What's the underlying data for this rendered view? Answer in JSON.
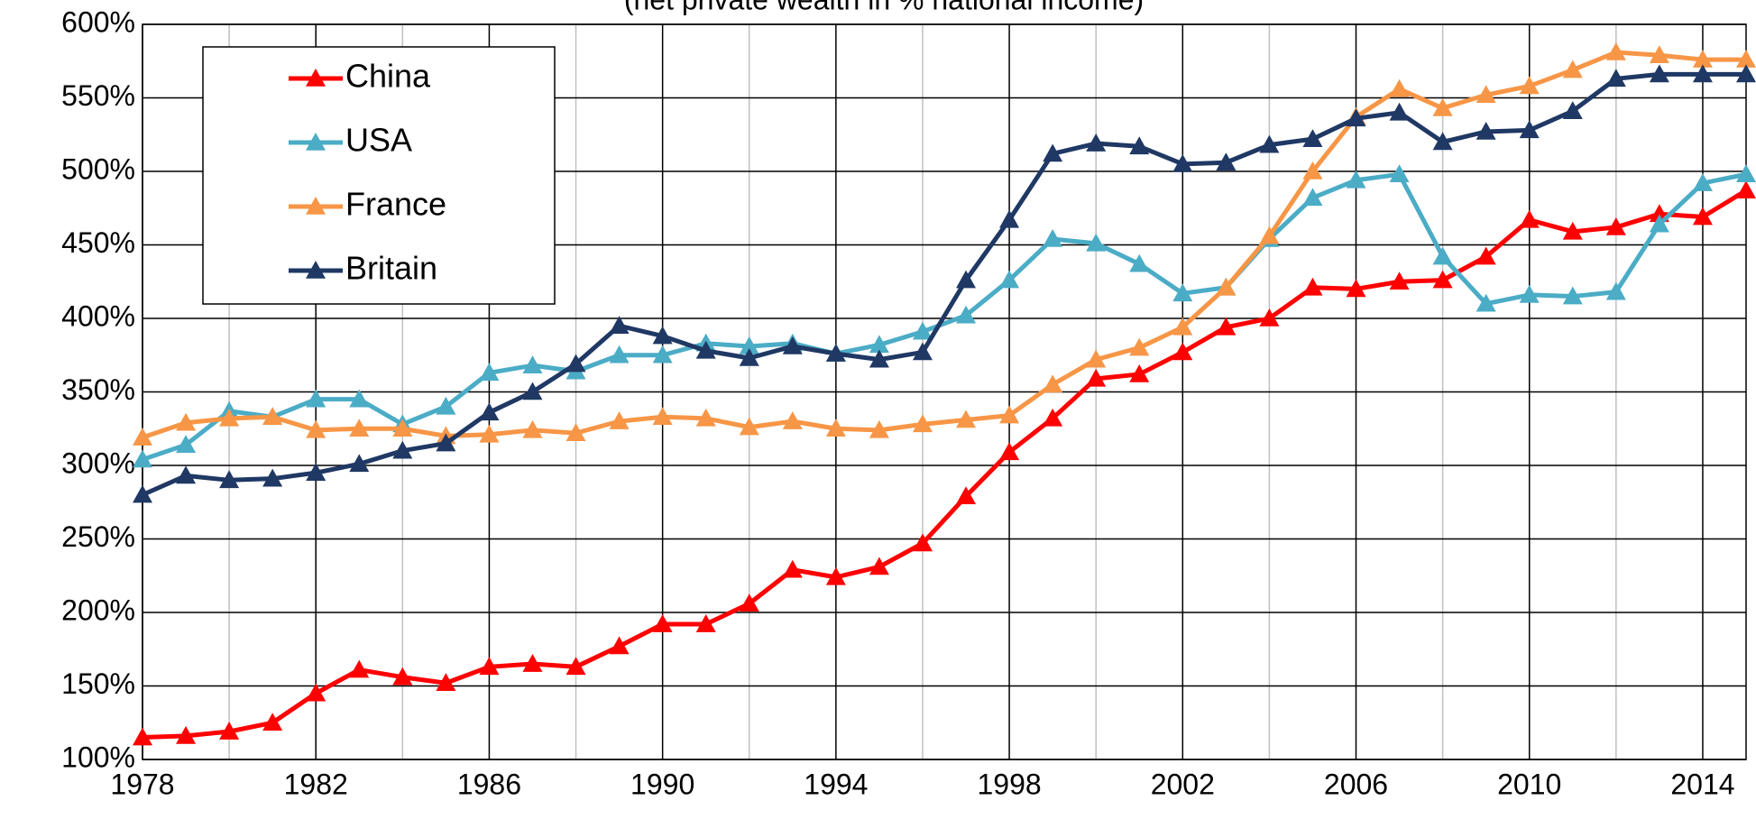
{
  "chart_data": {
    "type": "line",
    "subtitle": "(net private wealth in % national income)",
    "x": [
      1978,
      1979,
      1980,
      1981,
      1982,
      1983,
      1984,
      1985,
      1986,
      1987,
      1988,
      1989,
      1990,
      1991,
      1992,
      1993,
      1994,
      1995,
      1996,
      1997,
      1998,
      1999,
      2000,
      2001,
      2002,
      2003,
      2004,
      2005,
      2006,
      2007,
      2008,
      2009,
      2010,
      2011,
      2012,
      2013,
      2014,
      2015
    ],
    "series": [
      {
        "name": "China",
        "color": "#ff0000",
        "values": [
          115,
          116,
          119,
          125,
          145,
          161,
          156,
          152,
          163,
          165,
          163,
          177,
          192,
          192,
          206,
          229,
          224,
          231,
          247,
          279,
          309,
          332,
          359,
          362,
          377,
          394,
          400,
          421,
          420,
          425,
          426,
          442,
          467,
          459,
          462,
          471,
          469,
          487
        ]
      },
      {
        "name": "USA",
        "color": "#4bacc6",
        "values": [
          304,
          314,
          337,
          333,
          345,
          345,
          328,
          340,
          363,
          368,
          364,
          375,
          375,
          383,
          381,
          383,
          376,
          382,
          391,
          402,
          426,
          454,
          451,
          437,
          417,
          421,
          454,
          482,
          494,
          498,
          442,
          410,
          416,
          415,
          418,
          464,
          492,
          498
        ]
      },
      {
        "name": "France",
        "color": "#f79646",
        "values": [
          319,
          329,
          332,
          333,
          324,
          325,
          325,
          320,
          321,
          324,
          322,
          330,
          333,
          332,
          326,
          330,
          325,
          324,
          328,
          331,
          334,
          355,
          372,
          380,
          394,
          421,
          456,
          500,
          537,
          556,
          543,
          552,
          558,
          569,
          581,
          579,
          576,
          576
        ]
      },
      {
        "name": "Britain",
        "color": "#1f3864",
        "values": [
          280,
          293,
          290,
          291,
          295,
          301,
          310,
          315,
          336,
          350,
          369,
          395,
          388,
          378,
          373,
          381,
          376,
          372,
          377,
          426,
          467,
          512,
          519,
          517,
          505,
          506,
          518,
          522,
          536,
          540,
          520,
          527,
          528,
          541,
          563,
          566,
          566,
          566
        ]
      }
    ],
    "xlim": [
      1978,
      2015
    ],
    "xticks": [
      1978,
      1982,
      1986,
      1990,
      1994,
      1998,
      2002,
      2006,
      2010,
      2014
    ],
    "ylim": [
      100,
      600
    ],
    "yticks": [
      {
        "value": 100,
        "label": "100%"
      },
      {
        "value": 150,
        "label": "150%"
      },
      {
        "value": 200,
        "label": "200%"
      },
      {
        "value": 250,
        "label": "250%"
      },
      {
        "value": 300,
        "label": "300%"
      },
      {
        "value": 350,
        "label": "350%"
      },
      {
        "value": 400,
        "label": "400%"
      },
      {
        "value": 450,
        "label": "450%"
      },
      {
        "value": 500,
        "label": "500%"
      },
      {
        "value": 550,
        "label": "550%"
      },
      {
        "value": 600,
        "label": "600%"
      }
    ],
    "grid": true,
    "legend": "upper left"
  }
}
